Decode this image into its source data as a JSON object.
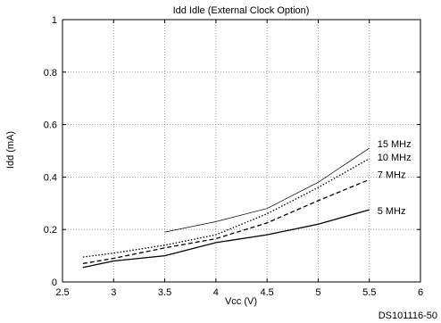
{
  "chart_data": {
    "type": "line",
    "title": "Idd Idle (External Clock Option)",
    "xlabel": "Vcc (V)",
    "ylabel": "Idd (mA)",
    "xlim": [
      2.5,
      6
    ],
    "ylim": [
      0,
      1
    ],
    "x_ticks": [
      "2.5",
      "3",
      "3.5",
      "4",
      "4.5",
      "5",
      "5.5",
      "6"
    ],
    "y_ticks": [
      "0",
      "0.2",
      "0.4",
      "0.6",
      "0.8",
      "1"
    ],
    "grid": true,
    "legend": "inline labels at right end of each series",
    "footnote": "DS101116-50",
    "series": [
      {
        "name": "15 MHz",
        "style": "solid-thin",
        "points": [
          [
            3.5,
            0.19
          ],
          [
            4.0,
            0.23
          ],
          [
            4.5,
            0.28
          ],
          [
            5.0,
            0.38
          ],
          [
            5.5,
            0.51
          ]
        ]
      },
      {
        "name": "10 MHz",
        "style": "dotted",
        "points": [
          [
            2.7,
            0.095
          ],
          [
            3.0,
            0.11
          ],
          [
            3.5,
            0.14
          ],
          [
            4.0,
            0.18
          ],
          [
            4.5,
            0.26
          ],
          [
            5.0,
            0.36
          ],
          [
            5.5,
            0.47
          ]
        ]
      },
      {
        "name": "7 MHz",
        "style": "dashed",
        "points": [
          [
            2.7,
            0.07
          ],
          [
            3.0,
            0.09
          ],
          [
            3.5,
            0.13
          ],
          [
            4.0,
            0.165
          ],
          [
            4.5,
            0.225
          ],
          [
            5.0,
            0.31
          ],
          [
            5.5,
            0.39
          ]
        ]
      },
      {
        "name": "5 MHz",
        "style": "solid",
        "points": [
          [
            2.7,
            0.055
          ],
          [
            3.0,
            0.08
          ],
          [
            3.5,
            0.1
          ],
          [
            4.0,
            0.15
          ],
          [
            4.5,
            0.18
          ],
          [
            5.0,
            0.22
          ],
          [
            5.5,
            0.275
          ]
        ]
      }
    ]
  }
}
